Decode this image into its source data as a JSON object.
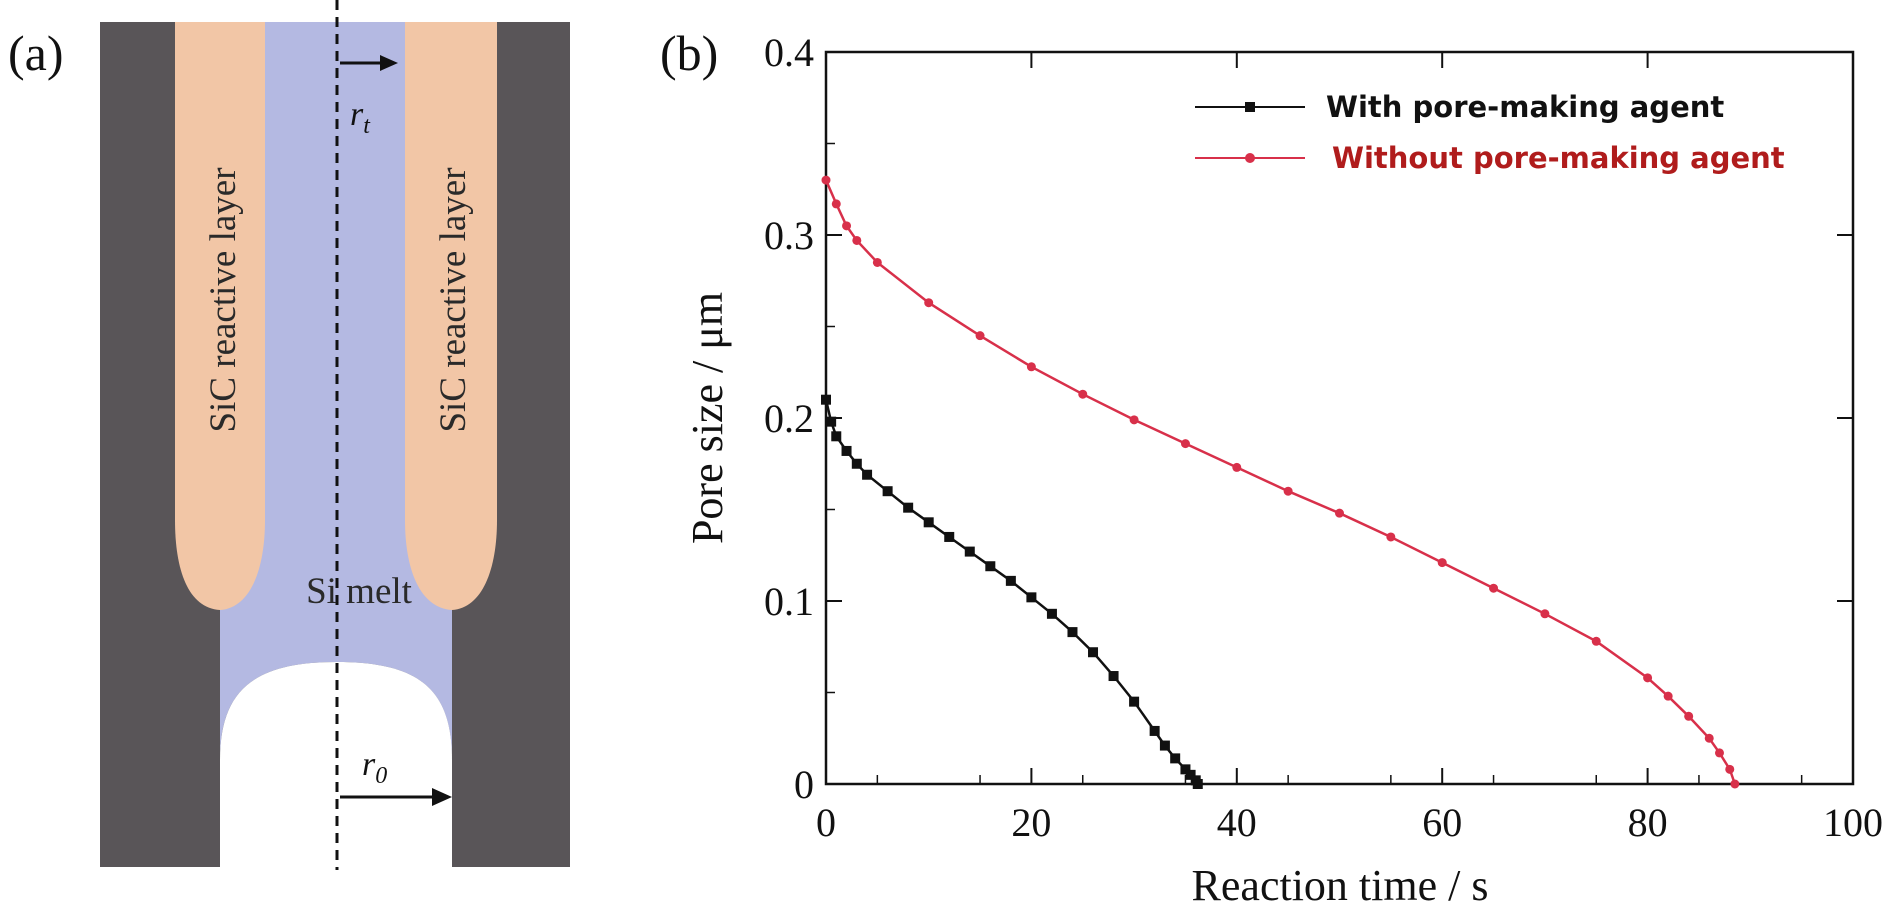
{
  "panel_a": {
    "label": "(a)",
    "layer_left_label": "SiC reactive layer",
    "layer_right_label": "SiC reactive layer",
    "melt_label": "Si melt",
    "rt_label": "r",
    "rt_sub": "t",
    "r0_label": "r",
    "r0_sub": "0",
    "colors": {
      "wall": "#595558",
      "sic": "#f2c6a6",
      "melt": "#b4b9e2",
      "void": "#ffffff"
    }
  },
  "panel_b": {
    "label": "(b)"
  },
  "chart_data": {
    "type": "line",
    "title": "",
    "xlabel": "Reaction time / s",
    "ylabel": "Pore size / μm",
    "xlim": [
      0,
      100
    ],
    "ylim": [
      0,
      0.4
    ],
    "xticks": [
      0,
      20,
      40,
      60,
      80,
      100
    ],
    "yticks": [
      0,
      0.1,
      0.2,
      0.3,
      0.4
    ],
    "xtick_labels": [
      "0",
      "20",
      "40",
      "60",
      "80",
      "100"
    ],
    "ytick_labels": [
      "0",
      "0.1",
      "0.2",
      "0.3",
      "0.4"
    ],
    "grid": false,
    "legend_position": "top-right",
    "series": [
      {
        "name": "With pore-making agent",
        "color": "#111111",
        "marker": "square",
        "x": [
          0,
          0.5,
          1,
          2,
          3,
          4,
          6,
          8,
          10,
          12,
          14,
          16,
          18,
          20,
          22,
          24,
          26,
          28,
          30,
          32,
          33,
          34,
          35,
          35.5,
          36,
          36.2
        ],
        "y": [
          0.21,
          0.198,
          0.19,
          0.182,
          0.175,
          0.169,
          0.16,
          0.151,
          0.143,
          0.135,
          0.127,
          0.119,
          0.111,
          0.102,
          0.093,
          0.083,
          0.072,
          0.059,
          0.045,
          0.029,
          0.021,
          0.014,
          0.008,
          0.005,
          0.002,
          0
        ]
      },
      {
        "name": "Without pore-making agent",
        "color": "#d8304a",
        "marker": "circle",
        "x": [
          0,
          1,
          2,
          3,
          5,
          10,
          15,
          20,
          25,
          30,
          35,
          40,
          45,
          50,
          55,
          60,
          65,
          70,
          75,
          80,
          82,
          84,
          86,
          87,
          88,
          88.5
        ],
        "y": [
          0.33,
          0.317,
          0.305,
          0.297,
          0.285,
          0.263,
          0.245,
          0.228,
          0.213,
          0.199,
          0.186,
          0.173,
          0.16,
          0.148,
          0.135,
          0.121,
          0.107,
          0.093,
          0.078,
          0.058,
          0.048,
          0.037,
          0.025,
          0.017,
          0.008,
          0
        ]
      }
    ]
  }
}
